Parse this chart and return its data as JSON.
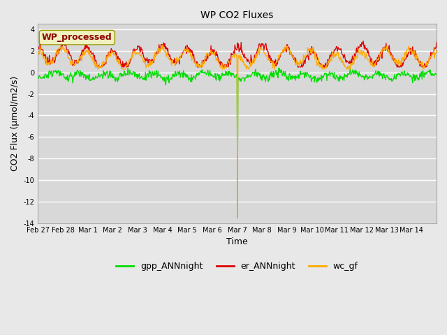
{
  "title": "WP CO2 Fluxes",
  "xlabel": "Time",
  "ylabel": "CO2 Flux (μmol/m2/s)",
  "ylim": [
    -14,
    4.5
  ],
  "yticks": [
    -14,
    -12,
    -10,
    -8,
    -6,
    -4,
    -2,
    0,
    2,
    4
  ],
  "fig_bg_color": "#e8e8e8",
  "plot_bg_color": "#d8d8d8",
  "legend_label": "WP_processed",
  "legend_label_color": "#8B0000",
  "legend_box_facecolor": "#f0f0c0",
  "legend_box_edgecolor": "#999900",
  "series_colors": {
    "gpp": "#00dd00",
    "er": "#dd0000",
    "wc": "#ffaa00"
  },
  "n_days": 16,
  "x_tick_labels": [
    "Feb 27",
    "Feb 28",
    "Mar 1",
    "Mar 2",
    "Mar 3",
    "Mar 4",
    "Mar 5",
    "Mar 6",
    "Mar 7",
    "Mar 8",
    "Mar 9",
    "Mar 10",
    "Mar 11",
    "Mar 12",
    "Mar 13",
    "Mar 14"
  ],
  "spike_day": 8,
  "spike_wc": -13.5,
  "spike_gpp": -13.5,
  "pts_per_day": 48,
  "grid_color": "#ffffff",
  "grid_lw": 1.0,
  "line_lw": 0.9,
  "title_fontsize": 10,
  "tick_fontsize": 7,
  "ylabel_fontsize": 9,
  "xlabel_fontsize": 9,
  "legend_fontsize": 9,
  "wp_label_fontsize": 9
}
